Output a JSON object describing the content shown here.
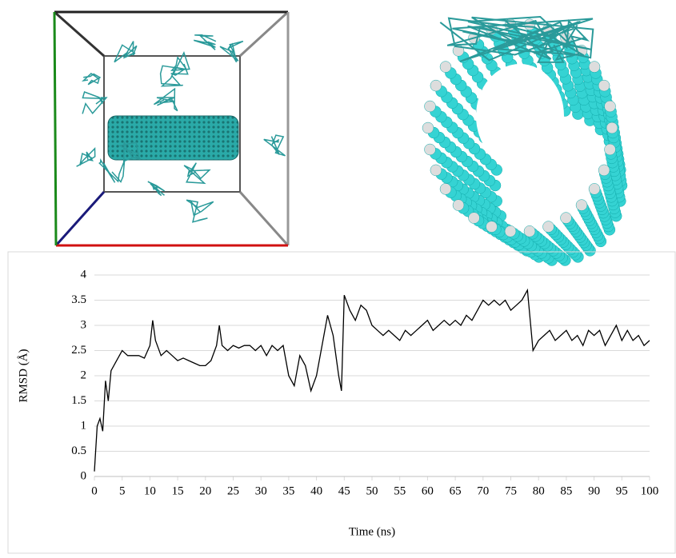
{
  "chart_data": {
    "type": "line",
    "x_label": "Time (ns)",
    "y_label": "RMSD (Å)",
    "x": [
      0,
      0.5,
      1,
      1.5,
      2,
      2.5,
      3,
      4,
      5,
      6,
      7,
      8,
      9,
      10,
      10.5,
      11,
      12,
      13,
      14,
      15,
      16,
      17,
      18,
      19,
      20,
      21,
      22,
      22.5,
      23,
      24,
      25,
      26,
      27,
      28,
      29,
      30,
      31,
      32,
      33,
      34,
      35,
      36,
      37,
      38,
      39,
      40,
      41,
      42,
      43,
      44,
      44.5,
      45,
      46,
      47,
      48,
      49,
      50,
      51,
      52,
      53,
      54,
      55,
      56,
      57,
      58,
      59,
      60,
      61,
      62,
      63,
      64,
      65,
      66,
      67,
      68,
      69,
      70,
      71,
      72,
      73,
      74,
      75,
      76,
      77,
      78,
      79,
      80,
      81,
      82,
      83,
      84,
      85,
      86,
      87,
      88,
      89,
      90,
      91,
      92,
      93,
      94,
      95,
      96,
      97,
      98,
      99,
      100
    ],
    "values": [
      0.1,
      1.0,
      1.15,
      0.9,
      1.9,
      1.5,
      2.1,
      2.3,
      2.5,
      2.4,
      2.4,
      2.4,
      2.35,
      2.6,
      3.1,
      2.7,
      2.4,
      2.5,
      2.4,
      2.3,
      2.35,
      2.3,
      2.25,
      2.2,
      2.2,
      2.3,
      2.6,
      3.0,
      2.6,
      2.5,
      2.6,
      2.55,
      2.6,
      2.6,
      2.5,
      2.6,
      2.4,
      2.6,
      2.5,
      2.6,
      2.0,
      1.8,
      2.4,
      2.2,
      1.7,
      2.0,
      2.6,
      3.2,
      2.8,
      2.0,
      1.7,
      3.6,
      3.3,
      3.1,
      3.4,
      3.3,
      3.0,
      2.9,
      2.8,
      2.9,
      2.8,
      2.7,
      2.9,
      2.8,
      2.9,
      3.0,
      3.1,
      2.9,
      3.0,
      3.1,
      3.0,
      3.1,
      3.0,
      3.2,
      3.1,
      3.3,
      3.5,
      3.4,
      3.5,
      3.4,
      3.5,
      3.3,
      3.4,
      3.5,
      3.7,
      2.5,
      2.7,
      2.8,
      2.9,
      2.7,
      2.8,
      2.9,
      2.7,
      2.8,
      2.6,
      2.9,
      2.8,
      2.9,
      2.6,
      2.8,
      3.0,
      2.7,
      2.9,
      2.7,
      2.8,
      2.6,
      2.7
    ],
    "color": "#000000",
    "xlim": [
      0,
      100
    ],
    "xticks": [
      0,
      5,
      10,
      15,
      20,
      25,
      30,
      35,
      40,
      45,
      50,
      55,
      60,
      65,
      70,
      75,
      80,
      85,
      90,
      95,
      100
    ],
    "ylim": [
      0,
      4
    ],
    "yticks": [
      0,
      0.5,
      1,
      1.5,
      2,
      2.5,
      3,
      3.5,
      4
    ],
    "grid": true
  }
}
